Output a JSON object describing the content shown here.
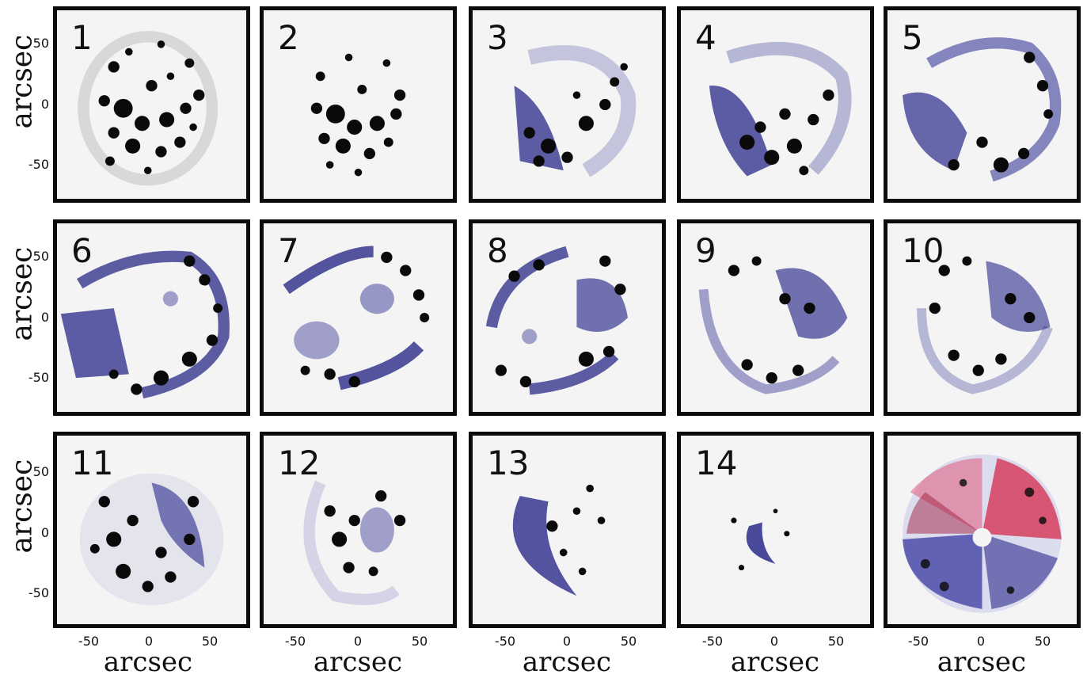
{
  "panels": [
    {
      "label": "1"
    },
    {
      "label": "2"
    },
    {
      "label": "3"
    },
    {
      "label": "4"
    },
    {
      "label": "5"
    },
    {
      "label": "6"
    },
    {
      "label": "7"
    },
    {
      "label": "8"
    },
    {
      "label": "9"
    },
    {
      "label": "10"
    },
    {
      "label": "11"
    },
    {
      "label": "12"
    },
    {
      "label": "13"
    },
    {
      "label": "14"
    },
    {
      "label": ""
    }
  ],
  "axes": {
    "ylabel": "arcsec",
    "xlabel": "arcsec",
    "yticks": [
      "50",
      "0",
      "-50"
    ],
    "xticks": [
      "-50",
      "0",
      "50"
    ]
  },
  "colors": {
    "knots": "#0a0a0a",
    "blue_shell": "#2a2a8a",
    "red_shell": "#d42a4a",
    "frame": "#0b0b0b"
  }
}
